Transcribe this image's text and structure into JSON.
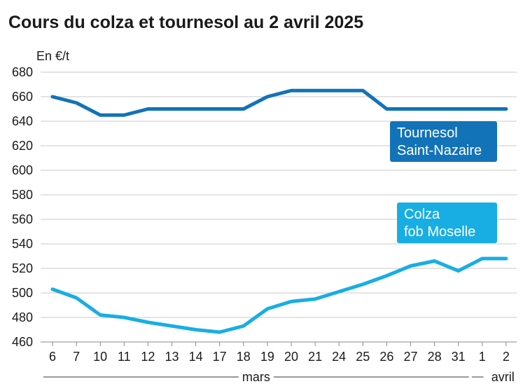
{
  "title": "Cours du colza et tournesol au 2 avril 2025",
  "chart_data": {
    "type": "line",
    "title": "Cours du colza et tournesol au 2 avril 2025",
    "ylabel": "En €/t",
    "xlabel": "",
    "ylim": [
      460,
      680
    ],
    "yticks": [
      460,
      480,
      500,
      520,
      540,
      560,
      580,
      600,
      620,
      640,
      660,
      680
    ],
    "grid": true,
    "categories": [
      "6",
      "7",
      "10",
      "11",
      "12",
      "13",
      "14",
      "17",
      "18",
      "19",
      "20",
      "21",
      "24",
      "25",
      "26",
      "27",
      "28",
      "31",
      "1",
      "2"
    ],
    "month_labels": [
      {
        "label": "mars",
        "from": 0,
        "to": 17
      },
      {
        "label": "avril",
        "from": 18,
        "to": 19
      }
    ],
    "series": [
      {
        "name": "Tournesol Saint-Nazaire",
        "label_lines": [
          "Tournesol",
          "Saint-Nazaire"
        ],
        "color": "#1273b8",
        "values": [
          660,
          655,
          645,
          645,
          650,
          650,
          650,
          650,
          650,
          660,
          665,
          665,
          665,
          665,
          650,
          650,
          650,
          650,
          650,
          650
        ]
      },
      {
        "name": "Colza fob Moselle",
        "label_lines": [
          "Colza",
          "fob Moselle"
        ],
        "color": "#18aee3",
        "values": [
          503,
          496,
          482,
          480,
          476,
          473,
          470,
          468,
          473,
          487,
          493,
          495,
          501,
          507,
          514,
          522,
          526,
          518,
          528,
          528
        ]
      }
    ]
  }
}
